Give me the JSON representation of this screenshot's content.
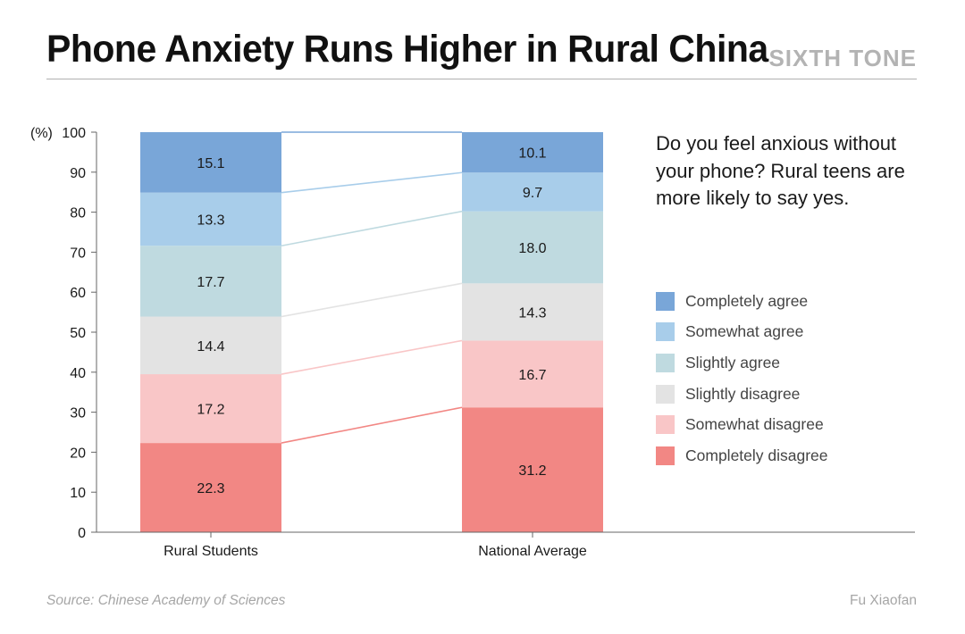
{
  "header": {
    "title": "Phone Anxiety Runs Higher in Rural China",
    "brand": "SIXTH TONE"
  },
  "chart_data": {
    "type": "bar",
    "stacked": true,
    "y_unit_label": "(%)",
    "ylim": [
      0,
      100
    ],
    "yticks": [
      0,
      10,
      20,
      30,
      40,
      50,
      60,
      70,
      80,
      90,
      100
    ],
    "categories": [
      "Rural Students",
      "National Average"
    ],
    "series": [
      {
        "name": "Completely disagree",
        "color": "#f28784",
        "values": [
          22.3,
          31.2
        ]
      },
      {
        "name": "Somewhat disagree",
        "color": "#f9c6c7",
        "values": [
          17.2,
          16.7
        ]
      },
      {
        "name": "Slightly disagree",
        "color": "#e3e3e3",
        "values": [
          14.4,
          14.3
        ]
      },
      {
        "name": "Slightly agree",
        "color": "#bfdae0",
        "values": [
          17.7,
          18.0
        ]
      },
      {
        "name": "Somewhat agree",
        "color": "#a8cdea",
        "values": [
          13.3,
          9.7
        ]
      },
      {
        "name": "Completely agree",
        "color": "#79a6d8",
        "values": [
          15.1,
          10.1
        ]
      }
    ],
    "annotation": "Do you feel anxious without your phone? Rural teens are more likely to say yes.",
    "legend_position": "right",
    "grid": false
  },
  "footer": {
    "source": "Source: Chinese Academy of Sciences",
    "credit": "Fu Xiaofan"
  }
}
